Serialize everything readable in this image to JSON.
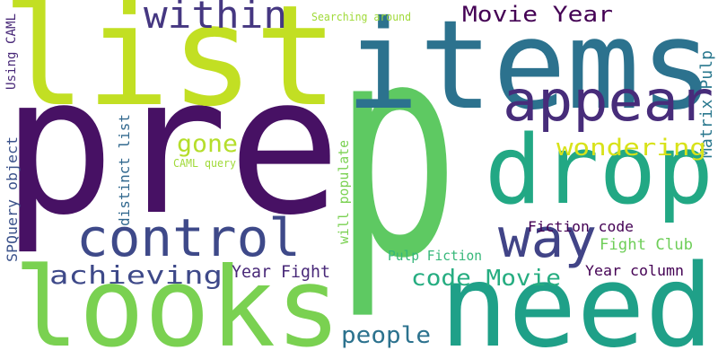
{
  "words": [
    "p",
    "pre",
    "list",
    "items",
    "appear",
    "drop",
    "need",
    "looks",
    "control",
    "way",
    "within",
    "Movie Year",
    "Searching around",
    "Using CAML",
    "SPQuery object",
    "distinct list",
    "will populate",
    "Matrix Pulp",
    "gone",
    "wondering",
    "CAML query",
    "Fiction code",
    "Fight Club",
    "Pulp Fiction",
    "achieving",
    "Year Fight",
    "code Movie",
    "Year column",
    "people"
  ]
}
